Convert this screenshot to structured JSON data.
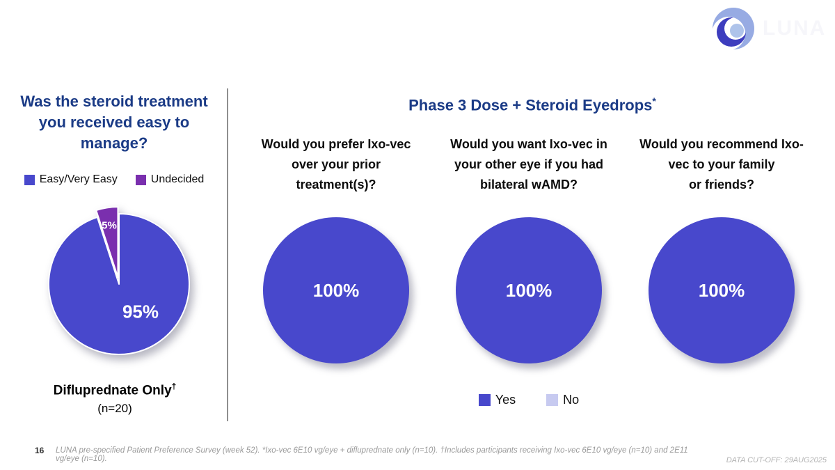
{
  "slide": {
    "page_number": "16",
    "footnote": "LUNA pre-specified Patient Preference Survey (week 52). *Ixo-vec 6E10 vg/eye + difluprednate only (n=10). †Includes participants receiving Ixo-vec 6E10 vg/eye (n=10) and 2E11 vg/eye (n=10).",
    "data_cutoff": "DATA CUT-OFF: 29AUG2025",
    "logo_text": "LUNA"
  },
  "colors": {
    "title_navy": "#1B3B86",
    "pie_blue": "#4848CC",
    "pie_purple": "#7A2FAE",
    "pie_light": "#C7CAF0"
  },
  "left_panel": {
    "title_lines": [
      "Was the steroid treatment",
      "you received easy to",
      "manage?"
    ],
    "legend": [
      {
        "label": "Easy/Very Easy",
        "color": "#4848CC"
      },
      {
        "label": "Undecided",
        "color": "#7A2FAE"
      }
    ],
    "pie_labels": {
      "major": "95%",
      "minor": "5%"
    },
    "caption_line1": "Difluprednate Only",
    "caption_dagger": "†",
    "caption_line2": "(n=20)"
  },
  "right_panel": {
    "title": "Phase 3 Dose + Steroid Eyedrops",
    "title_superscript": "*",
    "questions": [
      {
        "lines": [
          "Would you prefer Ixo-vec",
          "over your prior",
          "treatment(s)?"
        ],
        "value_label": "100%"
      },
      {
        "lines": [
          "Would you want Ixo-vec in",
          "your other eye if you had",
          "bilateral wAMD?"
        ],
        "value_label": "100%"
      },
      {
        "lines": [
          "Would you recommend Ixo-",
          "vec to your family",
          "or friends?"
        ],
        "value_label": "100%"
      }
    ],
    "legend": [
      {
        "label": "Yes",
        "color": "#4848CC"
      },
      {
        "label": "No",
        "color": "#C7CAF0"
      }
    ]
  },
  "chart_data": [
    {
      "type": "pie",
      "title": "Was the steroid treatment you received easy to manage?",
      "group_label": "Difluprednate Only† (n=20)",
      "labels": [
        "Easy/Very Easy",
        "Undecided"
      ],
      "values": [
        95,
        5
      ],
      "unit": "%",
      "colors": [
        "#4848CC",
        "#7A2FAE"
      ],
      "exploded_slice": "Undecided",
      "legend_position": "top"
    },
    {
      "type": "pie",
      "title": "Would you prefer Ixo-vec over your prior treatment(s)?",
      "labels": [
        "Yes",
        "No"
      ],
      "values": [
        100,
        0
      ],
      "unit": "%",
      "colors": [
        "#4848CC",
        "#C7CAF0"
      ]
    },
    {
      "type": "pie",
      "title": "Would you want Ixo-vec in your other eye if you had bilateral wAMD?",
      "labels": [
        "Yes",
        "No"
      ],
      "values": [
        100,
        0
      ],
      "unit": "%",
      "colors": [
        "#4848CC",
        "#C7CAF0"
      ]
    },
    {
      "type": "pie",
      "title": "Would you recommend Ixo-vec to your family or friends?",
      "labels": [
        "Yes",
        "No"
      ],
      "values": [
        100,
        0
      ],
      "unit": "%",
      "colors": [
        "#4848CC",
        "#C7CAF0"
      ]
    }
  ]
}
